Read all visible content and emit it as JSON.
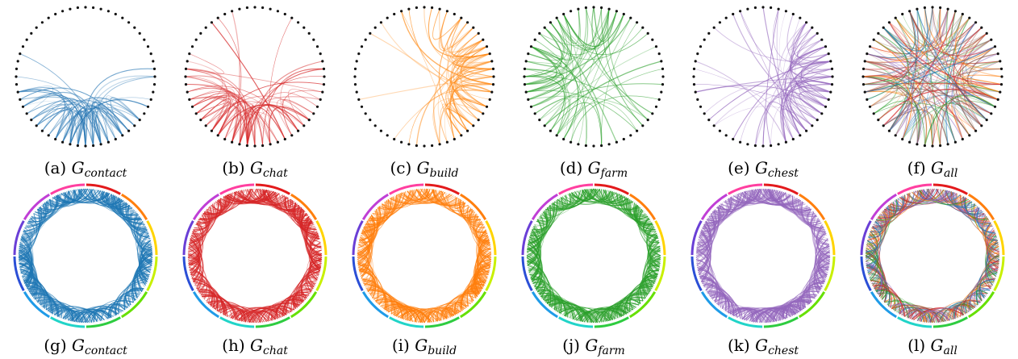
{
  "panels": [
    {
      "label": "(a)",
      "symbol": "G",
      "subscript": "contact",
      "style": "dots",
      "color": "#2f7bb6"
    },
    {
      "label": "(b)",
      "symbol": "G",
      "subscript": "chat",
      "style": "dots",
      "color": "#d62728"
    },
    {
      "label": "(c)",
      "symbol": "G",
      "subscript": "build",
      "style": "dots",
      "color": "#ff8c1a"
    },
    {
      "label": "(d)",
      "symbol": "G",
      "subscript": "farm",
      "style": "dots",
      "color": "#2ca02c"
    },
    {
      "label": "(e)",
      "symbol": "G",
      "subscript": "chest",
      "style": "dots",
      "color": "#9467bd"
    },
    {
      "label": "(f)",
      "symbol": "G",
      "subscript": "all",
      "style": "dots",
      "color": "mixed"
    },
    {
      "label": "(g)",
      "symbol": "G",
      "subscript": "contact",
      "style": "ring",
      "color": "#1f77b4"
    },
    {
      "label": "(h)",
      "symbol": "G",
      "subscript": "chat",
      "style": "ring",
      "color": "#d62728"
    },
    {
      "label": "(i)",
      "symbol": "G",
      "subscript": "build",
      "style": "ring",
      "color": "#ff7f0e"
    },
    {
      "label": "(j)",
      "symbol": "G",
      "subscript": "farm",
      "style": "ring",
      "color": "#2ca02c"
    },
    {
      "label": "(k)",
      "symbol": "G",
      "subscript": "chest",
      "style": "ring",
      "color": "#9467bd"
    },
    {
      "label": "(l)",
      "symbol": "G",
      "subscript": "all",
      "style": "ring",
      "color": "mixed"
    }
  ],
  "mixed_colors": [
    "#d62728",
    "#9467bd",
    "#2ca02c",
    "#1f77b4",
    "#ff7f0e",
    "#8c564b"
  ],
  "ring_colors": [
    "#e31a1c",
    "#ff7f0e",
    "#ffd400",
    "#c8f000",
    "#66e000",
    "#2ecc40",
    "#21d4c8",
    "#1f9be8",
    "#2b4fd6",
    "#6a3fd6",
    "#c03fd6",
    "#ff3fa0"
  ]
}
